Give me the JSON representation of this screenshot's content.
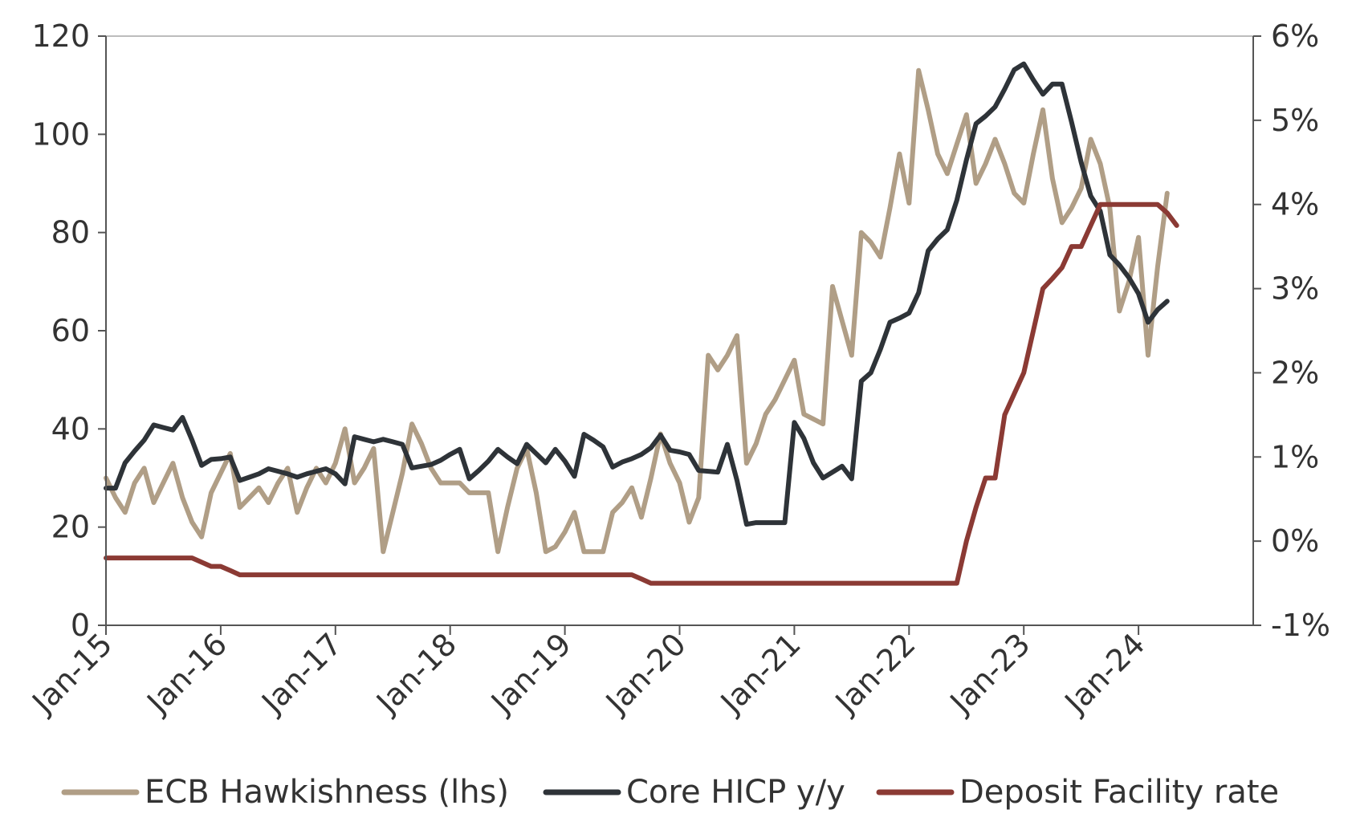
{
  "chart_data": {
    "type": "line",
    "title": "",
    "xlabel": "",
    "ylabel": "",
    "x_tick_labels": [
      "Jan-15",
      "Jan-16",
      "Jan-17",
      "Jan-18",
      "Jan-19",
      "Jan-20",
      "Jan-21",
      "Jan-22",
      "Jan-23",
      "Jan-24"
    ],
    "y_left": {
      "range": [
        0,
        120
      ],
      "ticks": [
        "0",
        "20",
        "40",
        "60",
        "80",
        "100",
        "120"
      ]
    },
    "y_right": {
      "range": [
        -1,
        6
      ],
      "ticks": [
        "-1%",
        "0%",
        "1%",
        "2%",
        "3%",
        "4%",
        "5%",
        "6%"
      ]
    },
    "grid": false,
    "legend_position": "bottom",
    "series": [
      {
        "name": "ECB Hawkishness (lhs)",
        "axis": "left",
        "color": "#b09e86",
        "points": [
          [
            "2015-01",
            30
          ],
          [
            "2015-02",
            26
          ],
          [
            "2015-03",
            23
          ],
          [
            "2015-04",
            29
          ],
          [
            "2015-05",
            32
          ],
          [
            "2015-06",
            25
          ],
          [
            "2015-07",
            29
          ],
          [
            "2015-08",
            33
          ],
          [
            "2015-09",
            26
          ],
          [
            "2015-10",
            21
          ],
          [
            "2015-11",
            18
          ],
          [
            "2015-12",
            27
          ],
          [
            "2016-01",
            31
          ],
          [
            "2016-02",
            35
          ],
          [
            "2016-03",
            24
          ],
          [
            "2016-04",
            26
          ],
          [
            "2016-05",
            28
          ],
          [
            "2016-06",
            25
          ],
          [
            "2016-07",
            29
          ],
          [
            "2016-08",
            32
          ],
          [
            "2016-09",
            23
          ],
          [
            "2016-10",
            28
          ],
          [
            "2016-11",
            32
          ],
          [
            "2016-12",
            29
          ],
          [
            "2017-01",
            33
          ],
          [
            "2017-02",
            40
          ],
          [
            "2017-03",
            29
          ],
          [
            "2017-04",
            32
          ],
          [
            "2017-05",
            36
          ],
          [
            "2017-06",
            15
          ],
          [
            "2017-07",
            23
          ],
          [
            "2017-08",
            31
          ],
          [
            "2017-09",
            41
          ],
          [
            "2017-10",
            37
          ],
          [
            "2017-11",
            32
          ],
          [
            "2017-12",
            29
          ],
          [
            "2018-01",
            29
          ],
          [
            "2018-02",
            29
          ],
          [
            "2018-03",
            27
          ],
          [
            "2018-04",
            27
          ],
          [
            "2018-05",
            27
          ],
          [
            "2018-06",
            15
          ],
          [
            "2018-07",
            24
          ],
          [
            "2018-08",
            32
          ],
          [
            "2018-09",
            36
          ],
          [
            "2018-10",
            27
          ],
          [
            "2018-11",
            15
          ],
          [
            "2018-12",
            16
          ],
          [
            "2019-01",
            19
          ],
          [
            "2019-02",
            23
          ],
          [
            "2019-03",
            15
          ],
          [
            "2019-04",
            15
          ],
          [
            "2019-05",
            15
          ],
          [
            "2019-06",
            23
          ],
          [
            "2019-07",
            25
          ],
          [
            "2019-08",
            28
          ],
          [
            "2019-09",
            22
          ],
          [
            "2019-10",
            30
          ],
          [
            "2019-11",
            39
          ],
          [
            "2019-12",
            33
          ],
          [
            "2020-01",
            29
          ],
          [
            "2020-02",
            21
          ],
          [
            "2020-03",
            26
          ],
          [
            "2020-04",
            55
          ],
          [
            "2020-05",
            52
          ],
          [
            "2020-06",
            55
          ],
          [
            "2020-07",
            59
          ],
          [
            "2020-08",
            33
          ],
          [
            "2020-09",
            37
          ],
          [
            "2020-10",
            43
          ],
          [
            "2020-11",
            46
          ],
          [
            "2020-12",
            50
          ],
          [
            "2021-01",
            54
          ],
          [
            "2021-02",
            43
          ],
          [
            "2021-03",
            42
          ],
          [
            "2021-04",
            41
          ],
          [
            "2021-05",
            69
          ],
          [
            "2021-06",
            62
          ],
          [
            "2021-07",
            55
          ],
          [
            "2021-08",
            80
          ],
          [
            "2021-09",
            78
          ],
          [
            "2021-10",
            75
          ],
          [
            "2021-11",
            85
          ],
          [
            "2021-12",
            96
          ],
          [
            "2022-01",
            86
          ],
          [
            "2022-02",
            113
          ],
          [
            "2022-03",
            105
          ],
          [
            "2022-04",
            96
          ],
          [
            "2022-05",
            92
          ],
          [
            "2022-06",
            98
          ],
          [
            "2022-07",
            104
          ],
          [
            "2022-08",
            90
          ],
          [
            "2022-09",
            94
          ],
          [
            "2022-10",
            99
          ],
          [
            "2022-11",
            94
          ],
          [
            "2022-12",
            88
          ],
          [
            "2023-01",
            86
          ],
          [
            "2023-02",
            96
          ],
          [
            "2023-03",
            105
          ],
          [
            "2023-04",
            91
          ],
          [
            "2023-05",
            82
          ],
          [
            "2023-06",
            85
          ],
          [
            "2023-07",
            89
          ],
          [
            "2023-08",
            99
          ],
          [
            "2023-09",
            94
          ],
          [
            "2023-10",
            85
          ],
          [
            "2023-11",
            64
          ],
          [
            "2023-12",
            70
          ],
          [
            "2024-01",
            79
          ],
          [
            "2024-02",
            55
          ],
          [
            "2024-03",
            73
          ],
          [
            "2024-04",
            88
          ]
        ]
      },
      {
        "name": "Core HICP y/y",
        "axis": "right",
        "color": "#2e3338",
        "points": [
          [
            "2015-01",
            0.63
          ],
          [
            "2015-02",
            0.63
          ],
          [
            "2015-03",
            0.93
          ],
          [
            "2015-04",
            1.07
          ],
          [
            "2015-05",
            1.2
          ],
          [
            "2015-06",
            1.38
          ],
          [
            "2015-07",
            1.35
          ],
          [
            "2015-08",
            1.32
          ],
          [
            "2015-09",
            1.47
          ],
          [
            "2015-10",
            1.2
          ],
          [
            "2015-11",
            0.9
          ],
          [
            "2015-12",
            0.97
          ],
          [
            "2016-01",
            0.98
          ],
          [
            "2016-02",
            1.0
          ],
          [
            "2016-03",
            0.72
          ],
          [
            "2016-04",
            0.76
          ],
          [
            "2016-05",
            0.8
          ],
          [
            "2016-06",
            0.86
          ],
          [
            "2016-07",
            0.83
          ],
          [
            "2016-08",
            0.8
          ],
          [
            "2016-09",
            0.76
          ],
          [
            "2016-10",
            0.8
          ],
          [
            "2016-11",
            0.83
          ],
          [
            "2016-12",
            0.86
          ],
          [
            "2017-01",
            0.8
          ],
          [
            "2017-02",
            0.68
          ],
          [
            "2017-03",
            1.24
          ],
          [
            "2017-04",
            1.21
          ],
          [
            "2017-05",
            1.18
          ],
          [
            "2017-06",
            1.21
          ],
          [
            "2017-07",
            1.18
          ],
          [
            "2017-08",
            1.15
          ],
          [
            "2017-09",
            0.87
          ],
          [
            "2017-10",
            0.89
          ],
          [
            "2017-11",
            0.91
          ],
          [
            "2017-12",
            0.96
          ],
          [
            "2018-01",
            1.03
          ],
          [
            "2018-02",
            1.09
          ],
          [
            "2018-03",
            0.74
          ],
          [
            "2018-04",
            0.84
          ],
          [
            "2018-05",
            0.95
          ],
          [
            "2018-06",
            1.09
          ],
          [
            "2018-07",
            1.0
          ],
          [
            "2018-08",
            0.92
          ],
          [
            "2018-09",
            1.15
          ],
          [
            "2018-10",
            1.04
          ],
          [
            "2018-11",
            0.93
          ],
          [
            "2018-12",
            1.09
          ],
          [
            "2019-01",
            0.95
          ],
          [
            "2019-02",
            0.77
          ],
          [
            "2019-03",
            1.27
          ],
          [
            "2019-04",
            1.2
          ],
          [
            "2019-05",
            1.12
          ],
          [
            "2019-06",
            0.88
          ],
          [
            "2019-07",
            0.94
          ],
          [
            "2019-08",
            0.98
          ],
          [
            "2019-09",
            1.03
          ],
          [
            "2019-10",
            1.11
          ],
          [
            "2019-11",
            1.26
          ],
          [
            "2019-12",
            1.08
          ],
          [
            "2020-01",
            1.06
          ],
          [
            "2020-02",
            1.03
          ],
          [
            "2020-03",
            0.84
          ],
          [
            "2020-04",
            0.83
          ],
          [
            "2020-05",
            0.82
          ],
          [
            "2020-06",
            1.15
          ],
          [
            "2020-07",
            0.72
          ],
          [
            "2020-08",
            0.2
          ],
          [
            "2020-09",
            0.22
          ],
          [
            "2020-10",
            0.22
          ],
          [
            "2020-11",
            0.22
          ],
          [
            "2020-12",
            0.22
          ],
          [
            "2021-01",
            1.41
          ],
          [
            "2021-02",
            1.22
          ],
          [
            "2021-03",
            0.93
          ],
          [
            "2021-04",
            0.75
          ],
          [
            "2021-05",
            0.82
          ],
          [
            "2021-06",
            0.89
          ],
          [
            "2021-07",
            0.74
          ],
          [
            "2021-08",
            1.9
          ],
          [
            "2021-09",
            2.0
          ],
          [
            "2021-10",
            2.28
          ],
          [
            "2021-11",
            2.6
          ],
          [
            "2021-12",
            2.65
          ],
          [
            "2022-01",
            2.71
          ],
          [
            "2022-02",
            2.95
          ],
          [
            "2022-03",
            3.45
          ],
          [
            "2022-04",
            3.59
          ],
          [
            "2022-05",
            3.7
          ],
          [
            "2022-06",
            4.05
          ],
          [
            "2022-07",
            4.53
          ],
          [
            "2022-08",
            4.96
          ],
          [
            "2022-09",
            5.05
          ],
          [
            "2022-10",
            5.16
          ],
          [
            "2022-11",
            5.37
          ],
          [
            "2022-12",
            5.6
          ],
          [
            "2023-01",
            5.67
          ],
          [
            "2023-02",
            5.48
          ],
          [
            "2023-03",
            5.31
          ],
          [
            "2023-04",
            5.43
          ],
          [
            "2023-05",
            5.43
          ],
          [
            "2023-06",
            4.98
          ],
          [
            "2023-07",
            4.5
          ],
          [
            "2023-08",
            4.1
          ],
          [
            "2023-09",
            3.92
          ],
          [
            "2023-10",
            3.4
          ],
          [
            "2023-11",
            3.28
          ],
          [
            "2023-12",
            3.13
          ],
          [
            "2024-01",
            2.94
          ],
          [
            "2024-02",
            2.6
          ],
          [
            "2024-03",
            2.75
          ],
          [
            "2024-04",
            2.85
          ]
        ]
      },
      {
        "name": "Deposit Facility rate",
        "axis": "right",
        "color": "#8b3a34",
        "points": [
          [
            "2015-01",
            -0.2
          ],
          [
            "2015-10",
            -0.2
          ],
          [
            "2015-11",
            -0.25
          ],
          [
            "2015-12",
            -0.3
          ],
          [
            "2016-01",
            -0.3
          ],
          [
            "2016-02",
            -0.35
          ],
          [
            "2016-03",
            -0.4
          ],
          [
            "2019-08",
            -0.4
          ],
          [
            "2019-09",
            -0.45
          ],
          [
            "2019-10",
            -0.5
          ],
          [
            "2022-06",
            -0.5
          ],
          [
            "2022-07",
            0.0
          ],
          [
            "2022-08",
            0.4
          ],
          [
            "2022-09",
            0.75
          ],
          [
            "2022-10",
            0.75
          ],
          [
            "2022-11",
            1.5
          ],
          [
            "2022-12",
            1.75
          ],
          [
            "2023-01",
            2.0
          ],
          [
            "2023-02",
            2.5
          ],
          [
            "2023-03",
            3.0
          ],
          [
            "2023-04",
            3.12
          ],
          [
            "2023-05",
            3.25
          ],
          [
            "2023-06",
            3.5
          ],
          [
            "2023-07",
            3.5
          ],
          [
            "2023-08",
            3.75
          ],
          [
            "2023-09",
            4.0
          ],
          [
            "2024-03",
            4.0
          ],
          [
            "2024-04",
            3.9
          ],
          [
            "2024-05",
            3.75
          ]
        ]
      }
    ]
  }
}
